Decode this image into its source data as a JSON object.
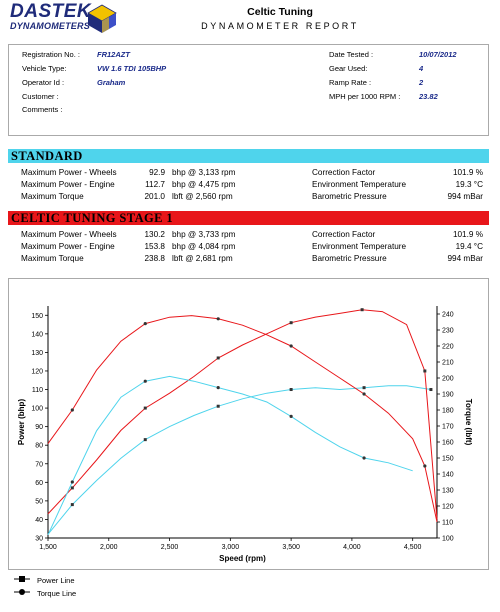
{
  "header": {
    "logo_line1": "DASTEK",
    "logo_line2": "DYNAMOMETERS",
    "title": "Celtic Tuning",
    "subtitle": "DYNAMOMETER REPORT"
  },
  "info": {
    "registration_label": "Registration No. :",
    "registration_value": "FR12AZT",
    "vehicle_label": "Vehicle Type:",
    "vehicle_value": "VW 1.6 TDI 105BHP",
    "operator_label": "Operator Id :",
    "operator_value": "Graham",
    "customer_label": "Customer :",
    "comments_label": "Comments :",
    "date_label": "Date Tested :",
    "date_value": "10/07/2012",
    "gear_label": "Gear Used:",
    "gear_value": "4",
    "ramp_label": "Ramp Rate :",
    "ramp_value": "2",
    "mph_label": "MPH per 1000 RPM :",
    "mph_value": "23.82"
  },
  "standard": {
    "title": "STANDARD",
    "rows": [
      {
        "label": "Maximum Power - Wheels",
        "value": "92.9",
        "unit": "bhp @ 3,133 rpm",
        "clabel": "Correction Factor",
        "cvalue": "101.9 %"
      },
      {
        "label": "Maximum Power - Engine",
        "value": "112.7",
        "unit": "bhp @ 4,475 rpm",
        "clabel": "Environment Temperature",
        "cvalue": "19.3 °C"
      },
      {
        "label": "Maximum Torque",
        "value": "201.0",
        "unit": "lbft @ 2,560 rpm",
        "clabel": "Barometric Pressure",
        "cvalue": "994 mBar"
      }
    ]
  },
  "stage1": {
    "title": "CELTIC TUNING STAGE 1",
    "rows": [
      {
        "label": "Maximum Power - Wheels",
        "value": "130.2",
        "unit": "bhp @ 3,733 rpm",
        "clabel": "Correction Factor",
        "cvalue": "101.9 %"
      },
      {
        "label": "Maximum Power - Engine",
        "value": "153.8",
        "unit": "bhp @ 4,084 rpm",
        "clabel": "Environment Temperature",
        "cvalue": "19.4 °C"
      },
      {
        "label": "Maximum Torque",
        "value": "238.8",
        "unit": "lbft @ 2,681 rpm",
        "clabel": "Barometric Pressure",
        "cvalue": "994 mBar"
      }
    ]
  },
  "legend": {
    "power": "Power Line",
    "torque": "Torque Line"
  },
  "colors": {
    "standard": "#4fd4ec",
    "stage1": "#e8161a",
    "accent_text": "#1a2a8a"
  },
  "chart_data": {
    "type": "line",
    "xlabel": "Speed (rpm)",
    "ylabel": "Power (bhp)",
    "y2label": "Torque (lbft)",
    "xlim": [
      1500,
      4700
    ],
    "ylim": [
      30,
      155
    ],
    "y2lim": [
      100,
      245
    ],
    "xticks": [
      "1,500",
      "2,000",
      "2,500",
      "3,000",
      "3,500",
      "4,000",
      "4,500"
    ],
    "xtick_values": [
      1500,
      2000,
      2500,
      3000,
      3500,
      4000,
      4500
    ],
    "yticks": [
      30,
      40,
      50,
      60,
      70,
      80,
      90,
      100,
      110,
      120,
      130,
      140,
      150
    ],
    "y2ticks": [
      100,
      110,
      120,
      130,
      140,
      150,
      160,
      170,
      180,
      190,
      200,
      210,
      220,
      230,
      240
    ],
    "grid": false,
    "series": [
      {
        "name": "Standard Power",
        "axis": "left",
        "color": "#4fd4ec",
        "x": [
          1500,
          1700,
          1900,
          2100,
          2300,
          2500,
          2700,
          2900,
          3100,
          3300,
          3500,
          3700,
          3900,
          4100,
          4300,
          4450,
          4650
        ],
        "y": [
          32,
          48,
          61,
          73,
          83,
          90,
          96,
          101,
          105,
          108,
          110,
          111,
          110,
          111,
          112,
          112,
          110
        ]
      },
      {
        "name": "Stage 1 Power",
        "axis": "left",
        "color": "#e8161a",
        "x": [
          1500,
          1700,
          1900,
          2100,
          2300,
          2500,
          2700,
          2900,
          3100,
          3300,
          3500,
          3700,
          3900,
          4084,
          4250,
          4450,
          4600,
          4700
        ],
        "y": [
          43,
          57,
          72,
          88,
          100,
          108,
          117,
          127,
          134,
          140,
          146,
          149,
          151,
          153,
          152,
          145,
          120,
          40
        ]
      },
      {
        "name": "Standard Torque",
        "axis": "right",
        "color": "#4fd4ec",
        "x": [
          1500,
          1700,
          1900,
          2100,
          2300,
          2500,
          2700,
          2900,
          3100,
          3300,
          3500,
          3700,
          3900,
          4100,
          4300,
          4500
        ],
        "y": [
          102,
          135,
          167,
          188,
          198,
          201,
          198,
          194,
          190,
          185,
          176,
          166,
          157,
          150,
          147,
          142
        ]
      },
      {
        "name": "Stage 1 Torque",
        "axis": "right",
        "color": "#e8161a",
        "x": [
          1500,
          1700,
          1900,
          2100,
          2300,
          2500,
          2681,
          2900,
          3100,
          3300,
          3500,
          3700,
          3900,
          4100,
          4300,
          4500,
          4600,
          4700
        ],
        "y": [
          159,
          180,
          205,
          223,
          234,
          238,
          239,
          237,
          233,
          227,
          220,
          210,
          200,
          190,
          178,
          162,
          145,
          110
        ]
      }
    ]
  }
}
